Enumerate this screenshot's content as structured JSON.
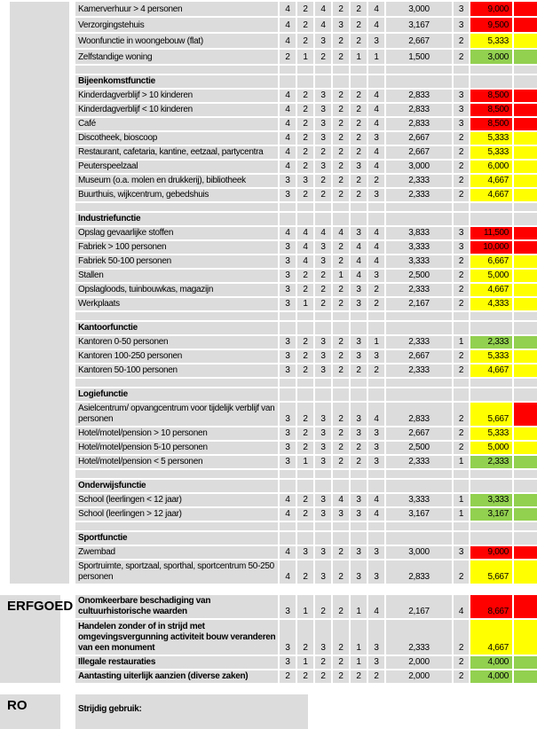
{
  "colors": {
    "cell_bg": "#dcdcdc",
    "risk_red": "#ff0000",
    "risk_yellow": "#ffff00",
    "risk_green": "#92d050",
    "text": "#000000",
    "page_bg": "#ffffff"
  },
  "sidebar": {
    "erfgoed_label": "ERFGOED",
    "ro_label": "RO"
  },
  "table": {
    "sections": [
      {
        "id": "s1",
        "spacer_after": true,
        "rows": [
          {
            "label": "Kamerverhuur > 4 personen",
            "values": [
              4,
              2,
              4,
              2,
              2,
              4
            ],
            "avg": "3,000",
            "weight": "3",
            "risk": "9,000",
            "risk_color": "red",
            "stripe_color": "red",
            "lines": 1
          },
          {
            "label": "Verzorgingstehuis",
            "values": [
              4,
              2,
              4,
              3,
              2,
              4
            ],
            "avg": "3,167",
            "weight": "3",
            "risk": "9,500",
            "risk_color": "red",
            "stripe_color": "red",
            "lines": 1
          },
          {
            "label": "Woonfunctie in woongebouw (flat)",
            "values": [
              4,
              2,
              3,
              2,
              2,
              3
            ],
            "avg": "2,667",
            "weight": "2",
            "risk": "5,333",
            "risk_color": "yellow",
            "stripe_color": "yellow",
            "lines": 1
          },
          {
            "label": "Zelfstandige woning",
            "values": [
              2,
              1,
              2,
              2,
              1,
              1
            ],
            "avg": "1,500",
            "weight": "2",
            "risk": "3,000",
            "risk_color": "green",
            "stripe_color": "green",
            "lines": 1
          }
        ]
      },
      {
        "id": "bijeenkomstfunctie",
        "header": "Bijeenkomstfunctie",
        "spacer_after": true,
        "rows": [
          {
            "label": "Kinderdagverblijf > 10 kinderen",
            "values": [
              4,
              2,
              3,
              2,
              2,
              4
            ],
            "avg": "2,833",
            "weight": "3",
            "risk": "8,500",
            "risk_color": "red",
            "stripe_color": "red",
            "lines": 1
          },
          {
            "label": "Kinderdagverblijf < 10 kinderen",
            "values": [
              4,
              2,
              3,
              2,
              2,
              4
            ],
            "avg": "2,833",
            "weight": "3",
            "risk": "8,500",
            "risk_color": "red",
            "stripe_color": "red",
            "lines": 1
          },
          {
            "label": "Café",
            "values": [
              4,
              2,
              3,
              2,
              2,
              4
            ],
            "avg": "2,833",
            "weight": "3",
            "risk": "8,500",
            "risk_color": "red",
            "stripe_color": "red",
            "lines": 1
          },
          {
            "label": "Discotheek, bioscoop",
            "values": [
              4,
              2,
              3,
              2,
              2,
              3
            ],
            "avg": "2,667",
            "weight": "2",
            "risk": "5,333",
            "risk_color": "yellow",
            "stripe_color": "yellow",
            "lines": 1
          },
          {
            "label": "Restaurant, cafetaria, kantine, eetzaal, partycentra",
            "values": [
              4,
              2,
              2,
              2,
              2,
              4
            ],
            "avg": "2,667",
            "weight": "2",
            "risk": "5,333",
            "risk_color": "yellow",
            "stripe_color": "yellow",
            "lines": 1
          },
          {
            "label": "Peuterspeelzaal",
            "values": [
              4,
              2,
              3,
              2,
              3,
              4
            ],
            "avg": "3,000",
            "weight": "2",
            "risk": "6,000",
            "risk_color": "yellow",
            "stripe_color": "yellow",
            "lines": 1
          },
          {
            "label": "Museum (o.a. molen en drukkerij), bibliotheek",
            "values": [
              3,
              3,
              2,
              2,
              2,
              2
            ],
            "avg": "2,333",
            "weight": "2",
            "risk": "4,667",
            "risk_color": "yellow",
            "stripe_color": "yellow",
            "lines": 1
          },
          {
            "label": "Buurthuis, wijkcentrum, gebedshuis",
            "values": [
              3,
              2,
              2,
              2,
              2,
              3
            ],
            "avg": "2,333",
            "weight": "2",
            "risk": "4,667",
            "risk_color": "yellow",
            "stripe_color": "yellow",
            "lines": 1
          }
        ]
      },
      {
        "id": "industriefunctie",
        "header": "Industriefunctie",
        "spacer_after": true,
        "rows": [
          {
            "label": "Opslag gevaarlijke stoffen",
            "values": [
              4,
              4,
              4,
              4,
              3,
              4
            ],
            "avg": "3,833",
            "weight": "3",
            "risk": "11,500",
            "risk_color": "red",
            "stripe_color": "red",
            "lines": 1
          },
          {
            "label": "Fabriek > 100 personen",
            "values": [
              3,
              4,
              3,
              2,
              4,
              4
            ],
            "avg": "3,333",
            "weight": "3",
            "risk": "10,000",
            "risk_color": "red",
            "stripe_color": "red",
            "lines": 1
          },
          {
            "label": "Fabriek 50-100 personen",
            "values": [
              3,
              4,
              3,
              2,
              4,
              4
            ],
            "avg": "3,333",
            "weight": "2",
            "risk": "6,667",
            "risk_color": "yellow",
            "stripe_color": "yellow",
            "lines": 1
          },
          {
            "label": "Stallen",
            "values": [
              3,
              2,
              2,
              1,
              4,
              3
            ],
            "avg": "2,500",
            "weight": "2",
            "risk": "5,000",
            "risk_color": "yellow",
            "stripe_color": "yellow",
            "lines": 1
          },
          {
            "label": "Opslagloods, tuinbouwkas, magazijn",
            "values": [
              3,
              2,
              2,
              2,
              3,
              2
            ],
            "avg": "2,333",
            "weight": "2",
            "risk": "4,667",
            "risk_color": "yellow",
            "stripe_color": "yellow",
            "lines": 1
          },
          {
            "label": "Werkplaats",
            "values": [
              3,
              1,
              2,
              2,
              3,
              2
            ],
            "avg": "2,167",
            "weight": "2",
            "risk": "4,333",
            "risk_color": "yellow",
            "stripe_color": "yellow",
            "lines": 1
          }
        ]
      },
      {
        "id": "kantoorfunctie",
        "header": "Kantoorfunctie",
        "spacer_after": true,
        "rows": [
          {
            "label": "Kantoren 0-50 personen",
            "values": [
              3,
              2,
              3,
              2,
              3,
              1
            ],
            "avg": "2,333",
            "weight": "1",
            "risk": "2,333",
            "risk_color": "green",
            "stripe_color": "green",
            "lines": 1
          },
          {
            "label": "Kantoren 100-250 personen",
            "values": [
              3,
              2,
              3,
              2,
              3,
              3
            ],
            "avg": "2,667",
            "weight": "2",
            "risk": "5,333",
            "risk_color": "yellow",
            "stripe_color": "yellow",
            "lines": 1
          },
          {
            "label": "Kantoren 50-100 personen",
            "values": [
              3,
              2,
              3,
              2,
              2,
              2
            ],
            "avg": "2,333",
            "weight": "2",
            "risk": "4,667",
            "risk_color": "yellow",
            "stripe_color": "yellow",
            "lines": 1
          }
        ]
      },
      {
        "id": "logiefunctie",
        "header": "Logiefunctie",
        "spacer_after": true,
        "rows": [
          {
            "label": "Asielcentrum/ opvangcentrum voor tijdelijk verblijf van personen",
            "values": [
              3,
              2,
              3,
              2,
              3,
              4
            ],
            "avg": "2,833",
            "weight": "2",
            "risk": "5,667",
            "risk_color": "yellow",
            "stripe_color": "red",
            "lines": 2
          },
          {
            "label": "Hotel/motel/pension > 10 personen",
            "values": [
              3,
              2,
              3,
              2,
              3,
              3
            ],
            "avg": "2,667",
            "weight": "2",
            "risk": "5,333",
            "risk_color": "yellow",
            "stripe_color": "yellow",
            "lines": 1
          },
          {
            "label": "Hotel/motel/pension 5-10 personen",
            "values": [
              3,
              2,
              3,
              2,
              2,
              3
            ],
            "avg": "2,500",
            "weight": "2",
            "risk": "5,000",
            "risk_color": "yellow",
            "stripe_color": "yellow",
            "lines": 1
          },
          {
            "label": "Hotel/motel/pension < 5 personen",
            "values": [
              3,
              1,
              3,
              2,
              2,
              3
            ],
            "avg": "2,333",
            "weight": "1",
            "risk": "2,333",
            "risk_color": "green",
            "stripe_color": "green",
            "lines": 1
          }
        ]
      },
      {
        "id": "onderwijsfunctie",
        "header": "Onderwijsfunctie",
        "spacer_after": true,
        "rows": [
          {
            "label": "School (leerlingen < 12 jaar)",
            "values": [
              4,
              2,
              3,
              4,
              3,
              4
            ],
            "avg": "3,333",
            "weight": "1",
            "risk": "3,333",
            "risk_color": "green",
            "stripe_color": "green",
            "lines": 1
          },
          {
            "label": "School (leerlingen > 12 jaar)",
            "values": [
              4,
              2,
              3,
              3,
              3,
              4
            ],
            "avg": "3,167",
            "weight": "1",
            "risk": "3,167",
            "risk_color": "green",
            "stripe_color": "green",
            "lines": 1
          }
        ]
      },
      {
        "id": "sportfunctie",
        "header": "Sportfunctie",
        "spacer_after": false,
        "rows": [
          {
            "label": "Zwembad",
            "values": [
              4,
              3,
              3,
              2,
              3,
              3
            ],
            "avg": "3,000",
            "weight": "3",
            "risk": "9,000",
            "risk_color": "red",
            "stripe_color": "red",
            "lines": 1
          },
          {
            "label": "Sportruimte, sportzaal, sporthal, sportcentrum 50-250 personen",
            "values": [
              4,
              2,
              3,
              2,
              3,
              3
            ],
            "avg": "2,833",
            "weight": "2",
            "risk": "5,667",
            "risk_color": "yellow",
            "stripe_color": "yellow",
            "lines": 2
          }
        ]
      },
      {
        "id": "erfgoed",
        "sidebar_label": "ERFGOED",
        "gap_before": true,
        "spacer_after": false,
        "rows": [
          {
            "label": "Onomkeerbare beschadiging van cultuurhistorische waarden",
            "bold": true,
            "values": [
              3,
              1,
              2,
              2,
              1,
              4
            ],
            "avg": "2,167",
            "weight": "4",
            "risk": "8,667",
            "risk_color": "red",
            "stripe_color": "red",
            "lines": 2
          },
          {
            "label": "Handelen zonder of in strijd met omgevingsvergunning activiteit bouw veranderen van een monument",
            "bold": true,
            "values": [
              3,
              2,
              3,
              2,
              1,
              3
            ],
            "avg": "2,333",
            "weight": "2",
            "risk": "4,667",
            "risk_color": "yellow",
            "stripe_color": "yellow",
            "lines": 3
          },
          {
            "label": "Illegale restauraties",
            "bold": true,
            "values": [
              3,
              1,
              2,
              2,
              1,
              3
            ],
            "avg": "2,000",
            "weight": "2",
            "risk": "4,000",
            "risk_color": "green",
            "stripe_color": "green",
            "lines": 1
          },
          {
            "label": "Aantasting uiterlijk aanzien (diverse zaken)",
            "bold": true,
            "values": [
              2,
              2,
              2,
              2,
              2,
              2
            ],
            "avg": "2,000",
            "weight": "2",
            "risk": "4,000",
            "risk_color": "green",
            "stripe_color": "green",
            "lines": 1
          }
        ]
      },
      {
        "id": "ro",
        "sidebar_label": "RO",
        "gap_before": true,
        "spacer_after": false,
        "rows": [
          {
            "label": "Strijdig gebruik:",
            "bold": true,
            "wide": true,
            "lines": 1
          }
        ]
      }
    ]
  }
}
